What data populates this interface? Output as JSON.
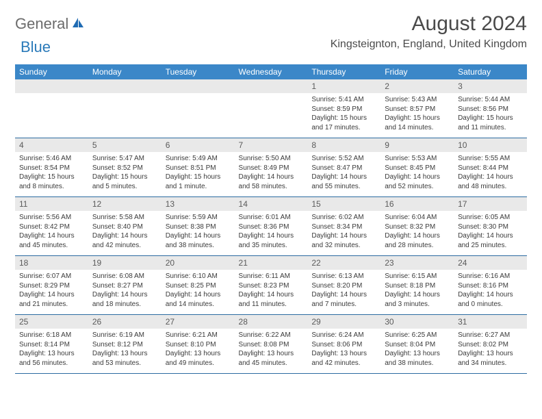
{
  "brand": {
    "part1": "General",
    "part2": "Blue"
  },
  "title": "August 2024",
  "location": "Kingsteignton, England, United Kingdom",
  "colors": {
    "header_bg": "#3b87c8",
    "header_text": "#ffffff",
    "daynum_bg": "#e9e9e9",
    "border": "#2a6aa0",
    "brand_gray": "#6b6b6b",
    "brand_blue": "#2a7ab9"
  },
  "day_headers": [
    "Sunday",
    "Monday",
    "Tuesday",
    "Wednesday",
    "Thursday",
    "Friday",
    "Saturday"
  ],
  "weeks": [
    [
      {
        "num": "",
        "lines": []
      },
      {
        "num": "",
        "lines": []
      },
      {
        "num": "",
        "lines": []
      },
      {
        "num": "",
        "lines": []
      },
      {
        "num": "1",
        "lines": [
          "Sunrise: 5:41 AM",
          "Sunset: 8:59 PM",
          "Daylight: 15 hours",
          "and 17 minutes."
        ]
      },
      {
        "num": "2",
        "lines": [
          "Sunrise: 5:43 AM",
          "Sunset: 8:57 PM",
          "Daylight: 15 hours",
          "and 14 minutes."
        ]
      },
      {
        "num": "3",
        "lines": [
          "Sunrise: 5:44 AM",
          "Sunset: 8:56 PM",
          "Daylight: 15 hours",
          "and 11 minutes."
        ]
      }
    ],
    [
      {
        "num": "4",
        "lines": [
          "Sunrise: 5:46 AM",
          "Sunset: 8:54 PM",
          "Daylight: 15 hours",
          "and 8 minutes."
        ]
      },
      {
        "num": "5",
        "lines": [
          "Sunrise: 5:47 AM",
          "Sunset: 8:52 PM",
          "Daylight: 15 hours",
          "and 5 minutes."
        ]
      },
      {
        "num": "6",
        "lines": [
          "Sunrise: 5:49 AM",
          "Sunset: 8:51 PM",
          "Daylight: 15 hours",
          "and 1 minute."
        ]
      },
      {
        "num": "7",
        "lines": [
          "Sunrise: 5:50 AM",
          "Sunset: 8:49 PM",
          "Daylight: 14 hours",
          "and 58 minutes."
        ]
      },
      {
        "num": "8",
        "lines": [
          "Sunrise: 5:52 AM",
          "Sunset: 8:47 PM",
          "Daylight: 14 hours",
          "and 55 minutes."
        ]
      },
      {
        "num": "9",
        "lines": [
          "Sunrise: 5:53 AM",
          "Sunset: 8:45 PM",
          "Daylight: 14 hours",
          "and 52 minutes."
        ]
      },
      {
        "num": "10",
        "lines": [
          "Sunrise: 5:55 AM",
          "Sunset: 8:44 PM",
          "Daylight: 14 hours",
          "and 48 minutes."
        ]
      }
    ],
    [
      {
        "num": "11",
        "lines": [
          "Sunrise: 5:56 AM",
          "Sunset: 8:42 PM",
          "Daylight: 14 hours",
          "and 45 minutes."
        ]
      },
      {
        "num": "12",
        "lines": [
          "Sunrise: 5:58 AM",
          "Sunset: 8:40 PM",
          "Daylight: 14 hours",
          "and 42 minutes."
        ]
      },
      {
        "num": "13",
        "lines": [
          "Sunrise: 5:59 AM",
          "Sunset: 8:38 PM",
          "Daylight: 14 hours",
          "and 38 minutes."
        ]
      },
      {
        "num": "14",
        "lines": [
          "Sunrise: 6:01 AM",
          "Sunset: 8:36 PM",
          "Daylight: 14 hours",
          "and 35 minutes."
        ]
      },
      {
        "num": "15",
        "lines": [
          "Sunrise: 6:02 AM",
          "Sunset: 8:34 PM",
          "Daylight: 14 hours",
          "and 32 minutes."
        ]
      },
      {
        "num": "16",
        "lines": [
          "Sunrise: 6:04 AM",
          "Sunset: 8:32 PM",
          "Daylight: 14 hours",
          "and 28 minutes."
        ]
      },
      {
        "num": "17",
        "lines": [
          "Sunrise: 6:05 AM",
          "Sunset: 8:30 PM",
          "Daylight: 14 hours",
          "and 25 minutes."
        ]
      }
    ],
    [
      {
        "num": "18",
        "lines": [
          "Sunrise: 6:07 AM",
          "Sunset: 8:29 PM",
          "Daylight: 14 hours",
          "and 21 minutes."
        ]
      },
      {
        "num": "19",
        "lines": [
          "Sunrise: 6:08 AM",
          "Sunset: 8:27 PM",
          "Daylight: 14 hours",
          "and 18 minutes."
        ]
      },
      {
        "num": "20",
        "lines": [
          "Sunrise: 6:10 AM",
          "Sunset: 8:25 PM",
          "Daylight: 14 hours",
          "and 14 minutes."
        ]
      },
      {
        "num": "21",
        "lines": [
          "Sunrise: 6:11 AM",
          "Sunset: 8:23 PM",
          "Daylight: 14 hours",
          "and 11 minutes."
        ]
      },
      {
        "num": "22",
        "lines": [
          "Sunrise: 6:13 AM",
          "Sunset: 8:20 PM",
          "Daylight: 14 hours",
          "and 7 minutes."
        ]
      },
      {
        "num": "23",
        "lines": [
          "Sunrise: 6:15 AM",
          "Sunset: 8:18 PM",
          "Daylight: 14 hours",
          "and 3 minutes."
        ]
      },
      {
        "num": "24",
        "lines": [
          "Sunrise: 6:16 AM",
          "Sunset: 8:16 PM",
          "Daylight: 14 hours",
          "and 0 minutes."
        ]
      }
    ],
    [
      {
        "num": "25",
        "lines": [
          "Sunrise: 6:18 AM",
          "Sunset: 8:14 PM",
          "Daylight: 13 hours",
          "and 56 minutes."
        ]
      },
      {
        "num": "26",
        "lines": [
          "Sunrise: 6:19 AM",
          "Sunset: 8:12 PM",
          "Daylight: 13 hours",
          "and 53 minutes."
        ]
      },
      {
        "num": "27",
        "lines": [
          "Sunrise: 6:21 AM",
          "Sunset: 8:10 PM",
          "Daylight: 13 hours",
          "and 49 minutes."
        ]
      },
      {
        "num": "28",
        "lines": [
          "Sunrise: 6:22 AM",
          "Sunset: 8:08 PM",
          "Daylight: 13 hours",
          "and 45 minutes."
        ]
      },
      {
        "num": "29",
        "lines": [
          "Sunrise: 6:24 AM",
          "Sunset: 8:06 PM",
          "Daylight: 13 hours",
          "and 42 minutes."
        ]
      },
      {
        "num": "30",
        "lines": [
          "Sunrise: 6:25 AM",
          "Sunset: 8:04 PM",
          "Daylight: 13 hours",
          "and 38 minutes."
        ]
      },
      {
        "num": "31",
        "lines": [
          "Sunrise: 6:27 AM",
          "Sunset: 8:02 PM",
          "Daylight: 13 hours",
          "and 34 minutes."
        ]
      }
    ]
  ]
}
